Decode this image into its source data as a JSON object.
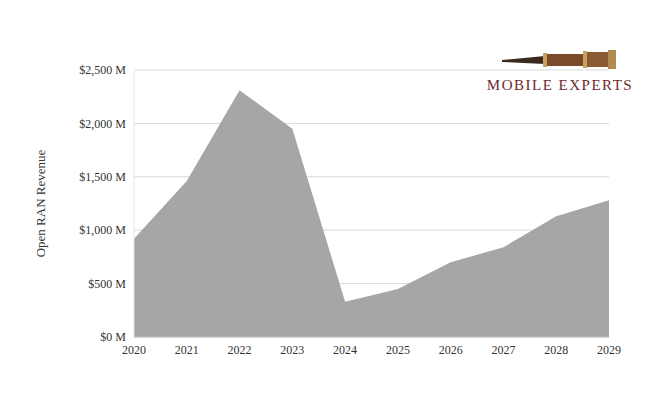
{
  "chart_data": {
    "type": "area",
    "y_label": "Open RAN Revenue",
    "annotations": [
      "MOBILE EXPERTS"
    ],
    "categories": [
      "2020",
      "2021",
      "2022",
      "2023",
      "2024",
      "2025",
      "2026",
      "2027",
      "2028",
      "2029"
    ],
    "values": [
      920,
      1460,
      2310,
      1950,
      330,
      450,
      700,
      840,
      1130,
      1280
    ],
    "color": "#a6a6a6",
    "ylim": [
      0,
      2500
    ],
    "yticks": [
      {
        "value": 0,
        "label": "$0 M"
      },
      {
        "value": 500,
        "label": "$500 M"
      },
      {
        "value": 1000,
        "label": "$1,000 M"
      },
      {
        "value": 1500,
        "label": "$1,500 M"
      },
      {
        "value": 2000,
        "label": "$2,000 M"
      },
      {
        "value": 2500,
        "label": "$2,500 M"
      }
    ],
    "grid": true
  }
}
